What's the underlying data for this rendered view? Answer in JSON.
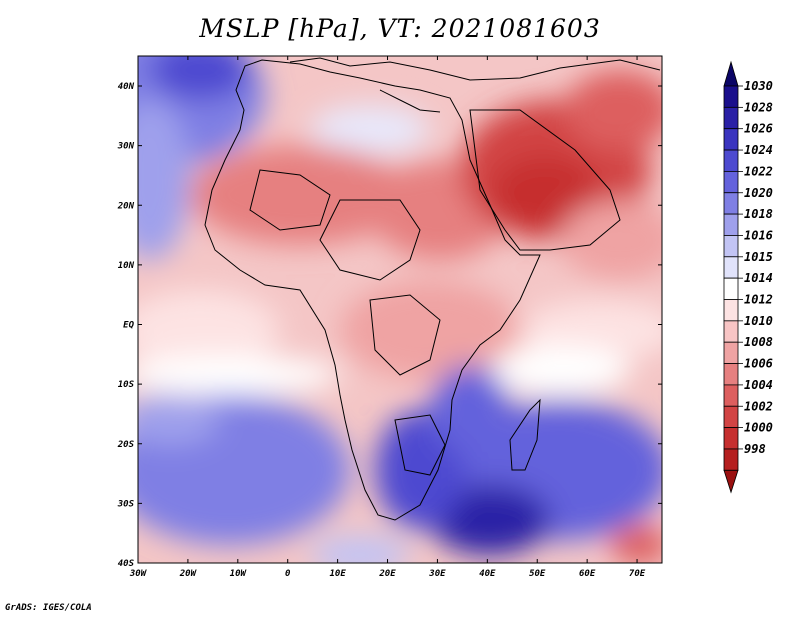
{
  "title": "MSLP [hPa], VT: 2021081603",
  "credit": "GrADS: IGES/COLA",
  "axes": {
    "lon_labels": [
      "30W",
      "20W",
      "10W",
      "0",
      "10E",
      "20E",
      "30E",
      "40E",
      "50E",
      "60E",
      "70E"
    ],
    "lat_labels": [
      "40N",
      "30N",
      "20N",
      "10N",
      "EQ",
      "10S",
      "20S",
      "30S",
      "40S"
    ]
  },
  "colorbar": {
    "levels": [
      {
        "label": "1030",
        "color": "#1a0f8c"
      },
      {
        "label": "1028",
        "color": "#2a20a6"
      },
      {
        "label": "1026",
        "color": "#3a34bf"
      },
      {
        "label": "1024",
        "color": "#4d4ad0"
      },
      {
        "label": "1022",
        "color": "#6462dc"
      },
      {
        "label": "1020",
        "color": "#7f7fe4"
      },
      {
        "label": "1018",
        "color": "#9fa0ec"
      },
      {
        "label": "1016",
        "color": "#c2c4f4"
      },
      {
        "label": "1015",
        "color": "#e1e3fb"
      },
      {
        "label": "1014",
        "color": "#ffffff"
      },
      {
        "label": "1012",
        "color": "#fde3e3"
      },
      {
        "label": "1010",
        "color": "#f8c5c5"
      },
      {
        "label": "1008",
        "color": "#efa3a3"
      },
      {
        "label": "1006",
        "color": "#e68080"
      },
      {
        "label": "1004",
        "color": "#dd5f5f"
      },
      {
        "label": "1002",
        "color": "#d24444"
      },
      {
        "label": "1000",
        "color": "#c62f2f"
      },
      {
        "label": "998",
        "color": "#b51f1f"
      }
    ],
    "top_arrow_color": "#0b0566",
    "bottom_arrow_color": "#9a1010"
  }
}
